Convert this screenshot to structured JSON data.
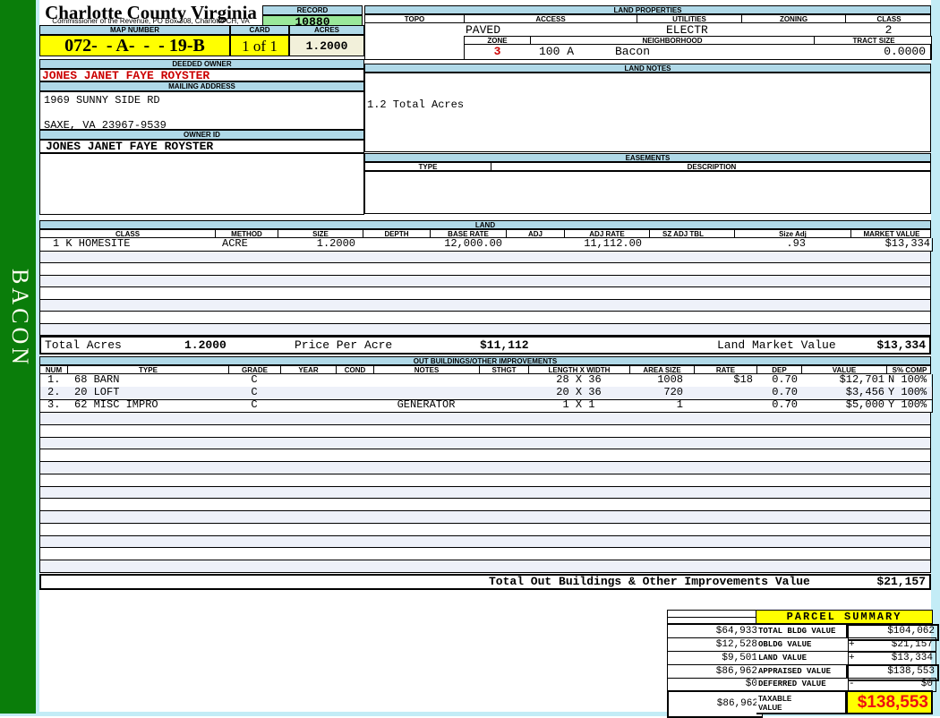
{
  "county": {
    "title": "Charlotte County Virginia",
    "subtitle": "Commissioner of the Revenue, PO Box 308, Charlotte CH, VA"
  },
  "sidebar": {
    "district_label": "BACON"
  },
  "record": {
    "label": "RECORD",
    "value": "10880"
  },
  "map_row": {
    "map_number_label": "MAP NUMBER",
    "map_number": "072-  - A-  -  - 19-B",
    "card_label": "CARD",
    "card": "1 of 1",
    "acres_label": "ACRES",
    "acres": "1.2000"
  },
  "owner": {
    "deeded_owner_label": "DEEDED OWNER",
    "deeded_owner": "JONES JANET FAYE ROYSTER",
    "mailing_address_label": "MAILING ADDRESS",
    "address_line1": "1969 SUNNY SIDE RD",
    "address_line2": "SAXE, VA 23967-9539",
    "owner_id_label": "OWNER ID",
    "owner_id": "JONES JANET FAYE ROYSTER"
  },
  "land_properties": {
    "title": "LAND PROPERTIES",
    "topo_label": "TOPO",
    "access_label": "ACCESS",
    "utilities_label": "UTILITIES",
    "zoning_label": "ZONING",
    "class_label": "CLASS",
    "access": "PAVED",
    "utilities": "ELECTR",
    "class": "2",
    "zone_label": "ZONE",
    "zone": "3",
    "neighborhood_label": "NEIGHBORHOOD",
    "neighborhood_code": "100 A",
    "neighborhood_name": "Bacon",
    "tract_size_label": "TRACT SIZE",
    "tract_size": "0.0000"
  },
  "land_notes": {
    "title": "LAND NOTES",
    "note": "1.2 Total Acres"
  },
  "easements": {
    "title": "EASEMENTS",
    "type_label": "TYPE",
    "description_label": "DESCRIPTION"
  },
  "land_table": {
    "title": "LAND",
    "headers": {
      "class": "CLASS",
      "method": "METHOD",
      "size": "SIZE",
      "depth": "DEPTH",
      "base_rate": "BASE RATE",
      "adj": "ADJ",
      "adj_rate": "ADJ RATE",
      "sz_adj_tbl": "SZ ADJ TBL",
      "size_adj": "Size Adj",
      "market_value": "MARKET VALUE"
    },
    "rows": [
      {
        "class": "1 K HOMESITE",
        "method": "ACRE",
        "size": "1.2000",
        "depth": "",
        "base_rate": "12,000.00",
        "adj": "",
        "adj_rate": "11,112.00",
        "sz_adj_tbl": "",
        "size_adj": ".93",
        "market_value": "$13,334"
      }
    ],
    "totals": {
      "total_acres_label": "Total Acres",
      "total_acres": "1.2000",
      "price_per_acre_label": "Price Per Acre",
      "price_per_acre": "$11,112",
      "market_value_label": "Land Market Value",
      "market_value": "$13,334"
    }
  },
  "out_buildings": {
    "title": "OUT BUILDINGS/OTHER IMPROVEMENTS",
    "headers": {
      "num": "NUM",
      "type": "TYPE",
      "grade": "GRADE",
      "year": "YEAR",
      "cond": "COND",
      "notes": "NOTES",
      "sthgt": "STHGT",
      "lxw": "LENGTH X WIDTH",
      "area": "AREA SIZE",
      "rate": "RATE",
      "dep": "DEP",
      "value": "VALUE",
      "s_comp": "S% COMP"
    },
    "rows": [
      {
        "num": "1.",
        "type": "68 BARN",
        "grade": "C",
        "year": "",
        "cond": "",
        "notes": "",
        "sthgt": "",
        "lxw": "28 X 36",
        "area": "1008",
        "rate": "$18",
        "dep": "0.70",
        "value": "$12,701",
        "s_comp": "N 100%"
      },
      {
        "num": "2.",
        "type": "20 LOFT",
        "grade": "C",
        "year": "",
        "cond": "",
        "notes": "",
        "sthgt": "",
        "lxw": "20 X 36",
        "area": "720",
        "rate": "",
        "dep": "0.70",
        "value": "$3,456",
        "s_comp": "Y 100%"
      },
      {
        "num": "3.",
        "type": "62 MISC IMPRO",
        "grade": "C",
        "year": "",
        "cond": "",
        "notes": "GENERATOR",
        "sthgt": "",
        "lxw": "1 X 1",
        "area": "1",
        "rate": "",
        "dep": "0.70",
        "value": "$5,000",
        "s_comp": "Y 100%"
      }
    ],
    "total_label": "Total Out Buildings & Other Improvements Value",
    "total_value": "$21,157"
  },
  "parcel_summary": {
    "title": "PARCEL SUMMARY",
    "rows": [
      {
        "left": "$64,933",
        "label": "TOTAL BLDG VALUE",
        "op": "",
        "value": "$104,062"
      },
      {
        "left": "$12,528",
        "label": "OBLDG VALUE",
        "op": "+",
        "value": "$21,157"
      },
      {
        "left": "$9,501",
        "label": "LAND VALUE",
        "op": "+",
        "value": "$13,334"
      },
      {
        "left": "$86,962",
        "label": "APPRAISED VALUE",
        "op": "",
        "value": "$138,553"
      },
      {
        "left": "$0",
        "label": "DEFERRED VALUE",
        "op": "-",
        "value": "$0"
      }
    ],
    "taxable": {
      "left": "$86,962",
      "label_line1": "TAXABLE",
      "label_line2": "VALUE",
      "value": "$138,553"
    }
  },
  "colors": {
    "sidebar_green": "#0a7d0a",
    "band_blue": "#b0d9e8",
    "record_green": "#9ae89a",
    "highlight_yellow": "#ffff00",
    "acres_ivory": "#f2f0da",
    "stripe_tint": "#eef1f9",
    "owner_red": "#cc0000",
    "taxable_red": "#ee1111",
    "page_cyan": "#c3ecf6"
  }
}
